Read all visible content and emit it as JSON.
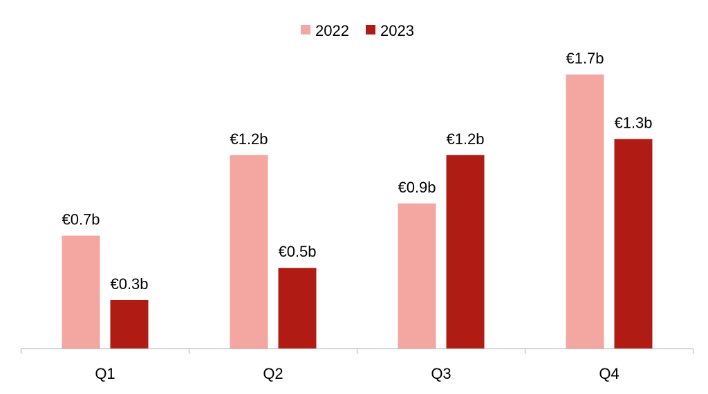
{
  "chart_data": {
    "type": "bar",
    "title": "",
    "xlabel": "",
    "ylabel": "",
    "categories": [
      "Q1",
      "Q2",
      "Q3",
      "Q4"
    ],
    "series": [
      {
        "name": "2022",
        "color": "#f4a7a1",
        "values": [
          0.7,
          1.2,
          0.9,
          1.7
        ],
        "labels": [
          "€0.7b",
          "€1.2b",
          "€0.9b",
          "€1.7b"
        ]
      },
      {
        "name": "2023",
        "color": "#b01c13",
        "values": [
          0.3,
          0.5,
          1.2,
          1.3
        ],
        "labels": [
          "€0.3b",
          "€0.5b",
          "€1.2b",
          "€1.3b"
        ]
      }
    ],
    "ylim": [
      0,
      1.7
    ],
    "grid": false,
    "legend": "top-center",
    "axis_color": "#bfbfbf"
  }
}
